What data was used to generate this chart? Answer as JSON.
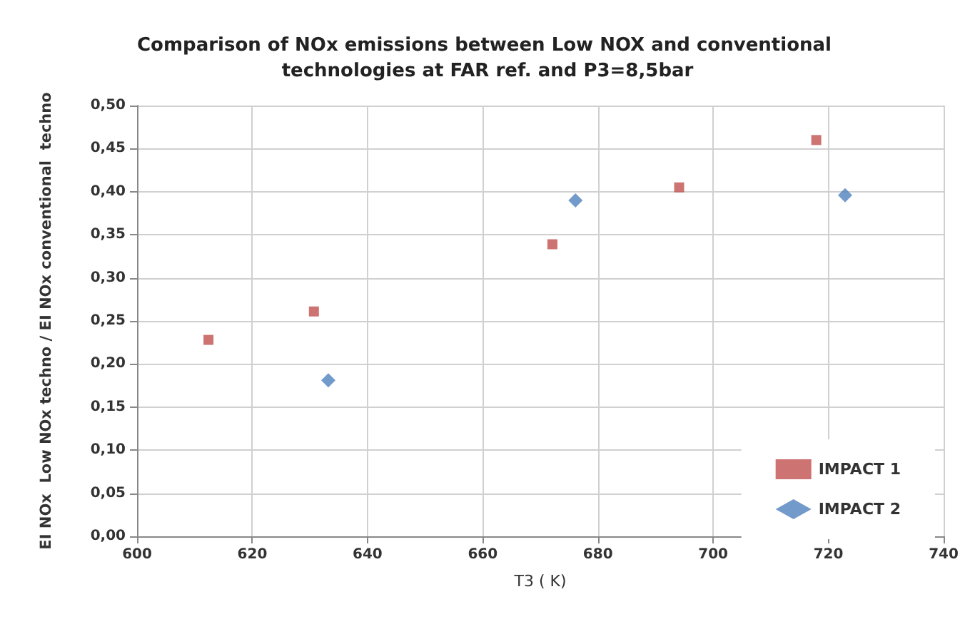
{
  "chart_data": {
    "type": "scatter",
    "title": "Comparison of NOx emissions between Low NOX and conventional technologies at FAR ref. and P3=8,5bar",
    "xlabel": "T3 ( K)",
    "ylabel": "EI NOx  Low NOx techno / EI NOx conventional  techno",
    "series": [
      {
        "name": "IMPACT 1",
        "color": "#c0504d",
        "marker": "square",
        "x": [
          612.4,
          630.7,
          672.1,
          694.1,
          717.9
        ],
        "values": [
          0.228,
          0.261,
          0.339,
          0.405,
          0.46
        ]
      },
      {
        "name": "IMPACT 2",
        "color": "#4f81bd",
        "marker": "diamond",
        "x": [
          633.2,
          676.1,
          722.9
        ],
        "values": [
          0.181,
          0.39,
          0.396
        ]
      }
    ],
    "xlim": [
      600,
      740
    ],
    "xticks": [
      600,
      620,
      640,
      660,
      680,
      700,
      720,
      740
    ],
    "ylim": [
      0,
      0.5
    ],
    "yticks": [
      {
        "value": 0,
        "label": "0,00"
      },
      {
        "value": 0.05,
        "label": "0,05"
      },
      {
        "value": 0.1,
        "label": "0,10"
      },
      {
        "value": 0.15,
        "label": "0,15"
      },
      {
        "value": 0.2,
        "label": "0,20"
      },
      {
        "value": 0.25,
        "label": "0,25"
      },
      {
        "value": 0.3,
        "label": "0,30"
      },
      {
        "value": 0.35,
        "label": "0,35"
      },
      {
        "value": 0.4,
        "label": "0,40"
      },
      {
        "value": 0.45,
        "label": "0,45"
      },
      {
        "value": 0.5,
        "label": "0,50"
      }
    ],
    "grid": true,
    "legend": "bottom right"
  }
}
